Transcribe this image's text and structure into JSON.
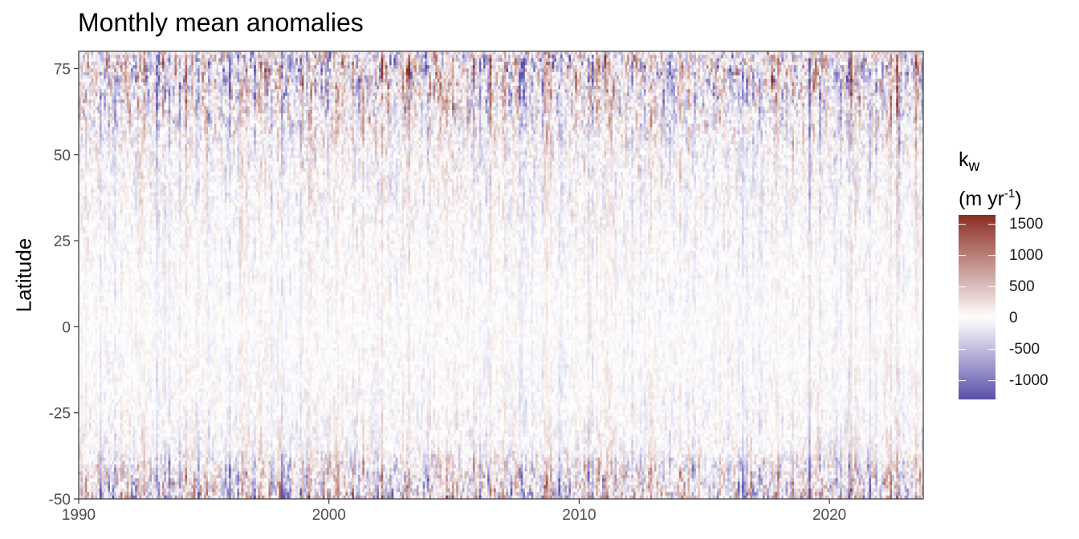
{
  "chart_data": {
    "type": "heatmap",
    "title": "Monthly mean anomalies",
    "xlabel": "",
    "ylabel": "Latitude",
    "xlim": [
      1990,
      2023.75
    ],
    "ylim": [
      -50,
      80
    ],
    "x_ticks": [
      1990,
      2000,
      2010,
      2020
    ],
    "y_ticks": [
      -50,
      -25,
      0,
      25,
      50,
      75
    ],
    "legend": {
      "title_main": "k",
      "title_sub": "w",
      "title_unit_prefix": "(m yr",
      "title_unit_sup": "-1",
      "title_unit_suffix": ")",
      "ticks": [
        1500,
        1000,
        500,
        0,
        -500,
        -1000
      ],
      "range": [
        -1300,
        1650
      ],
      "placement": "right"
    },
    "color_scale": {
      "low": "#5A4FA8",
      "mid": "#FFFFFF",
      "high": "#8B2D24"
    },
    "anomaly_profile": [
      {
        "lat": -50,
        "amplitude": 1200
      },
      {
        "lat": -47,
        "amplitude": 950
      },
      {
        "lat": -40,
        "amplitude": 650
      },
      {
        "lat": -36,
        "amplitude": 340
      },
      {
        "lat": -25,
        "amplitude": 230
      },
      {
        "lat": 0,
        "amplitude": 150
      },
      {
        "lat": 25,
        "amplitude": 220
      },
      {
        "lat": 50,
        "amplitude": 400
      },
      {
        "lat": 65,
        "amplitude": 800
      },
      {
        "lat": 75,
        "amplitude": 1150
      },
      {
        "lat": 80,
        "amplitude": 1300
      }
    ],
    "grid": false
  }
}
